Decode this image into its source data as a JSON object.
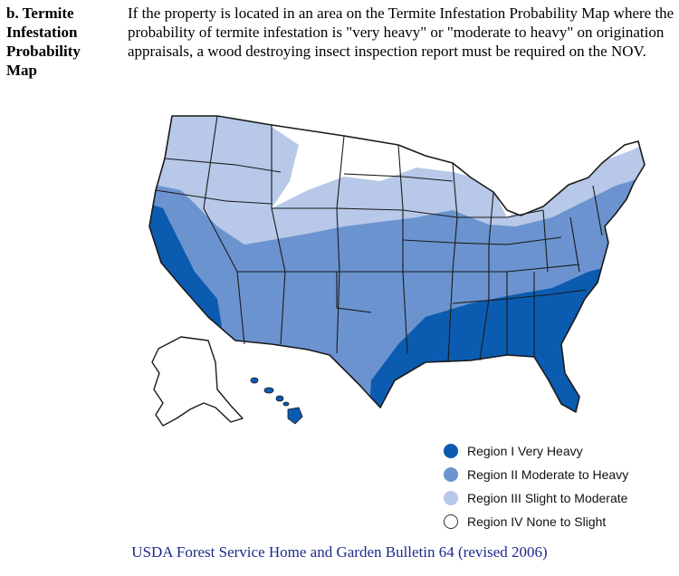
{
  "section": {
    "heading_lines": [
      "b. Termite",
      "Infestation",
      "Probability",
      "Map"
    ],
    "body": "If the property is located in an area on the Termite Infestation Probability Map where the probability of termite infestation is \"very heavy\" or \"moderate to heavy\" on origination appraisals, a wood destroying insect inspection report must be required on the NOV."
  },
  "legend": {
    "items": [
      {
        "label": "Region I Very Heavy",
        "color": "#0b5bb1"
      },
      {
        "label": "Region II Moderate to Heavy",
        "color": "#6b93cf"
      },
      {
        "label": "Region III Slight to Moderate",
        "color": "#b7c8e8"
      },
      {
        "label": "Region IV None to Slight",
        "color": "#ffffff"
      }
    ]
  },
  "caption": "USDA Forest Service Home and Garden Bulletin 64 (revised 2006)"
}
